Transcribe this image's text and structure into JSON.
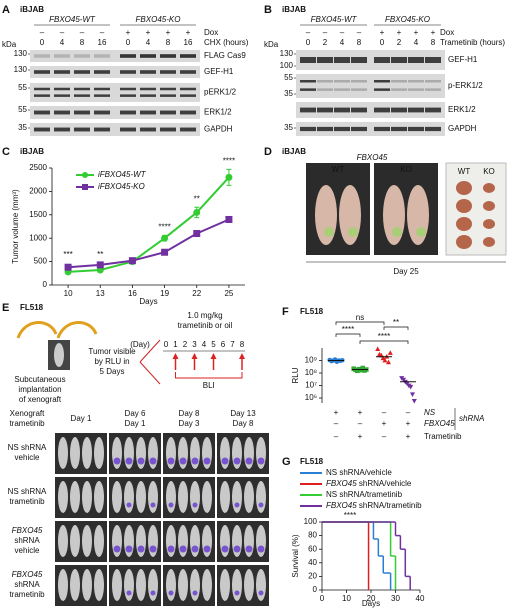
{
  "panel_a": {
    "label": "A",
    "cell_line": "iBJAB",
    "groups": [
      "FBXO45-WT",
      "FBXO45-KO"
    ],
    "dox_label": "Dox",
    "dox": [
      "–",
      "–",
      "–",
      "–",
      "+",
      "+",
      "+",
      "+"
    ],
    "treatment_label": "CHX (hours)",
    "hours": [
      0,
      4,
      8,
      16,
      0,
      4,
      8,
      16
    ],
    "kda_label": "kDa",
    "markers": [
      130,
      130,
      55,
      55,
      35
    ],
    "blots": [
      "FLAG Cas9",
      "GEF-H1",
      "pERK1/2",
      "ERK1/2",
      "GAPDH"
    ]
  },
  "panel_b": {
    "label": "B",
    "cell_line": "iBJAB",
    "groups": [
      "FBXO45-WT",
      "FBXO45-KO"
    ],
    "dox_label": "Dox",
    "dox": [
      "–",
      "–",
      "–",
      "–",
      "+",
      "+",
      "+",
      "+"
    ],
    "treatment_label": "Trametinib (hours)",
    "hours": [
      0,
      2,
      4,
      8,
      0,
      2,
      4,
      8
    ],
    "kda_label": "kDa",
    "markers": [
      130,
      100,
      55,
      35,
      35
    ],
    "blots": [
      "GEF-H1",
      "p-ERK1/2",
      "ERK1/2",
      "GAPDH"
    ]
  },
  "panel_d": {
    "label": "D",
    "cell_line": "iBJAB",
    "gene": "FBXO45",
    "photo_labels": [
      "WT",
      "KO"
    ],
    "tumor_labels": [
      "WT",
      "KO"
    ],
    "day": "Day 25"
  },
  "panel_e": {
    "label": "E",
    "cell_line": "FL518",
    "implant_text": [
      "Subcutaneous",
      "implantation",
      "of xenograft"
    ],
    "visible_text": [
      "Tumor visible",
      "by RLU in",
      "5 Days"
    ],
    "treatment_text": [
      "1.0 mg/kg",
      "trametinib or oil"
    ],
    "day_label": "(Day)",
    "days": [
      0,
      1,
      2,
      3,
      4,
      5,
      6,
      7,
      8
    ],
    "bli": "BLI",
    "header": [
      "Xenograft",
      "trametinib"
    ],
    "columns": [
      [
        "Day 1"
      ],
      [
        "Day 6",
        "Day 1"
      ],
      [
        "Day 8",
        "Day 3"
      ],
      [
        "Day 13",
        "Day 8"
      ]
    ],
    "rows": [
      [
        "NS shRNA",
        "vehicle"
      ],
      [
        "NS shRNA",
        "trametinib"
      ],
      [
        "FBXO45",
        "shRNA",
        "vehicle"
      ],
      [
        "FBXO45",
        "shRNA",
        "trametinib"
      ]
    ]
  },
  "chart_data": [
    {
      "panel_label": "C",
      "cell_line": "iBJAB",
      "type": "line",
      "x": [
        10,
        13,
        16,
        19,
        22,
        25
      ],
      "xlim": [
        8.5,
        26.5
      ],
      "xticks": [
        10,
        13,
        16,
        19,
        22,
        25
      ],
      "ylim": [
        0,
        2500
      ],
      "yticks": [
        0,
        500,
        1000,
        1500,
        2000,
        2500
      ],
      "x_label": "Days",
      "y_label": "Tumor volume (mm³)",
      "series": [
        {
          "name": "iFBXO45-WT",
          "color": "#33cc33",
          "values": [
            280,
            320,
            500,
            1000,
            1550,
            2300
          ],
          "errors": [
            20,
            25,
            30,
            60,
            110,
            170
          ]
        },
        {
          "name": "iFBXO45-KO",
          "color": "#7030a0",
          "values": [
            380,
            430,
            520,
            700,
            1100,
            1400
          ],
          "errors": [
            20,
            25,
            30,
            40,
            50,
            60
          ]
        }
      ],
      "significance": [
        "***",
        "**",
        null,
        "****",
        "**",
        "****"
      ]
    },
    {
      "panel_label": "F",
      "cell_line": "FL518",
      "type": "scatter",
      "log_y": true,
      "y_label": "RLU",
      "ylim": [
        400000,
        10000000000
      ],
      "yticks": [
        {
          "value": 1000000,
          "label": "10⁶"
        },
        {
          "value": 10000000,
          "label": "10⁷"
        },
        {
          "value": 100000000,
          "label": "10⁸"
        },
        {
          "value": 1000000000,
          "label": "10⁹"
        }
      ],
      "series": [
        {
          "color": "#2a7fd4",
          "marker": "circle",
          "values": [
            1100000000,
            900000000,
            1000000000,
            1200000000,
            800000000,
            1000000000,
            950000000,
            1050000000
          ],
          "mean": 1000000000
        },
        {
          "color": "#33aa33",
          "marker": "square",
          "values": [
            220000000,
            180000000,
            150000000,
            200000000,
            170000000,
            250000000,
            160000000,
            190000000
          ],
          "mean": 190000000
        },
        {
          "color": "#e02020",
          "marker": "triangle",
          "values": [
            8000000000,
            3000000000,
            2500000000,
            1500000000,
            1000000000,
            2000000000,
            700000000,
            4000000000
          ],
          "mean": 2000000000
        },
        {
          "color": "#7030a0",
          "marker": "triangle-down",
          "values": [
            40000000,
            30000000,
            20000000,
            15000000,
            10000000,
            8000000,
            2000000,
            600000
          ],
          "mean": 20000000
        }
      ],
      "significance": [
        "ns",
        "**",
        "****",
        "****"
      ],
      "conditions": [
        {
          "label": "NS",
          "values": [
            "+",
            "+",
            "–",
            "–"
          ]
        },
        {
          "label": "FBXO45",
          "values": [
            "–",
            "–",
            "+",
            "+"
          ]
        },
        {
          "label": "Trametinib",
          "values": [
            "–",
            "+",
            "–",
            "+"
          ]
        }
      ],
      "condition_group": "shRNA"
    },
    {
      "panel_label": "G",
      "cell_line": "FL518",
      "type": "step",
      "xlim": [
        0,
        40
      ],
      "xticks": [
        0,
        10,
        20,
        30,
        40
      ],
      "ylim": [
        0,
        100
      ],
      "yticks": [
        0,
        20,
        40,
        60,
        80,
        100
      ],
      "x_label": "Days",
      "y_label": "Survival (%)",
      "series": [
        {
          "name": "NS shRNA/vehicle",
          "color": "#2a7fd4",
          "x": [
            0,
            21,
            23,
            25,
            28
          ],
          "values": [
            100,
            75,
            50,
            25,
            0
          ]
        },
        {
          "name": "FBXO45 shRNA/vehicle",
          "color": "#e02020",
          "x": [
            0,
            19
          ],
          "values": [
            100,
            0
          ]
        },
        {
          "name": "NS shRNA/trametinib",
          "color": "#33cc33",
          "x": [
            0,
            28,
            30
          ],
          "values": [
            100,
            50,
            0
          ]
        },
        {
          "name": "FBXO45 shRNA/trametinib",
          "color": "#7030a0",
          "x": [
            0,
            30,
            32,
            34,
            36
          ],
          "values": [
            100,
            80,
            60,
            20,
            0
          ]
        }
      ],
      "significance": "****"
    }
  ]
}
